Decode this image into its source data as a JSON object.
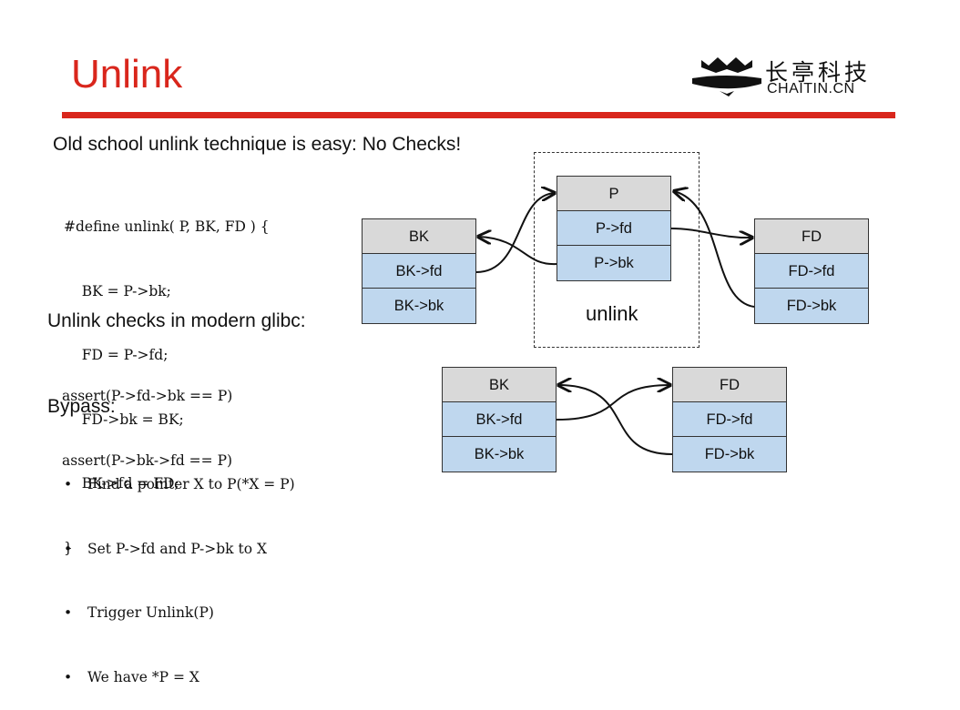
{
  "slide": {
    "title": "Unlink",
    "logo": {
      "chinese": "长亭科技",
      "domain": "CHAITIN.CN"
    }
  },
  "left": {
    "heading_old": "Old school unlink technique is easy: No Checks!",
    "macro_code": [
      "#define unlink( P, BK, FD ) {",
      "    BK = P->bk;",
      "    FD = P->fd;",
      "    FD->bk = BK;",
      "    BK->fd = FD;",
      "}"
    ],
    "heading_checks": "Unlink checks in modern glibc:",
    "assert_code": [
      "assert(P->fd->bk == P)",
      "assert(P->bk->fd == P)"
    ],
    "heading_bypass": "Bypass:",
    "bypass_items": [
      "Find a pointer X to P(*X = P)",
      "Set P->fd and P->bk to X",
      "Trigger Unlink(P)",
      "We have *P = X"
    ]
  },
  "diagram_top": {
    "p_chunk": {
      "header": "P",
      "fd": "P->fd",
      "bk": "P->bk"
    },
    "bk_chunk": {
      "header": "BK",
      "fd": "BK->fd",
      "bk": "BK->bk"
    },
    "fd_chunk": {
      "header": "FD",
      "fd": "FD->fd",
      "bk": "FD->bk"
    },
    "label": "unlink"
  },
  "diagram_bottom": {
    "bk_chunk": {
      "header": "BK",
      "fd": "BK->fd",
      "bk": "BK->bk"
    },
    "fd_chunk": {
      "header": "FD",
      "fd": "FD->fd",
      "bk": "FD->bk"
    }
  },
  "colors": {
    "accent": "#d9261c",
    "header_fill": "#d9d9d9",
    "field_fill": "#bfd7ee"
  }
}
